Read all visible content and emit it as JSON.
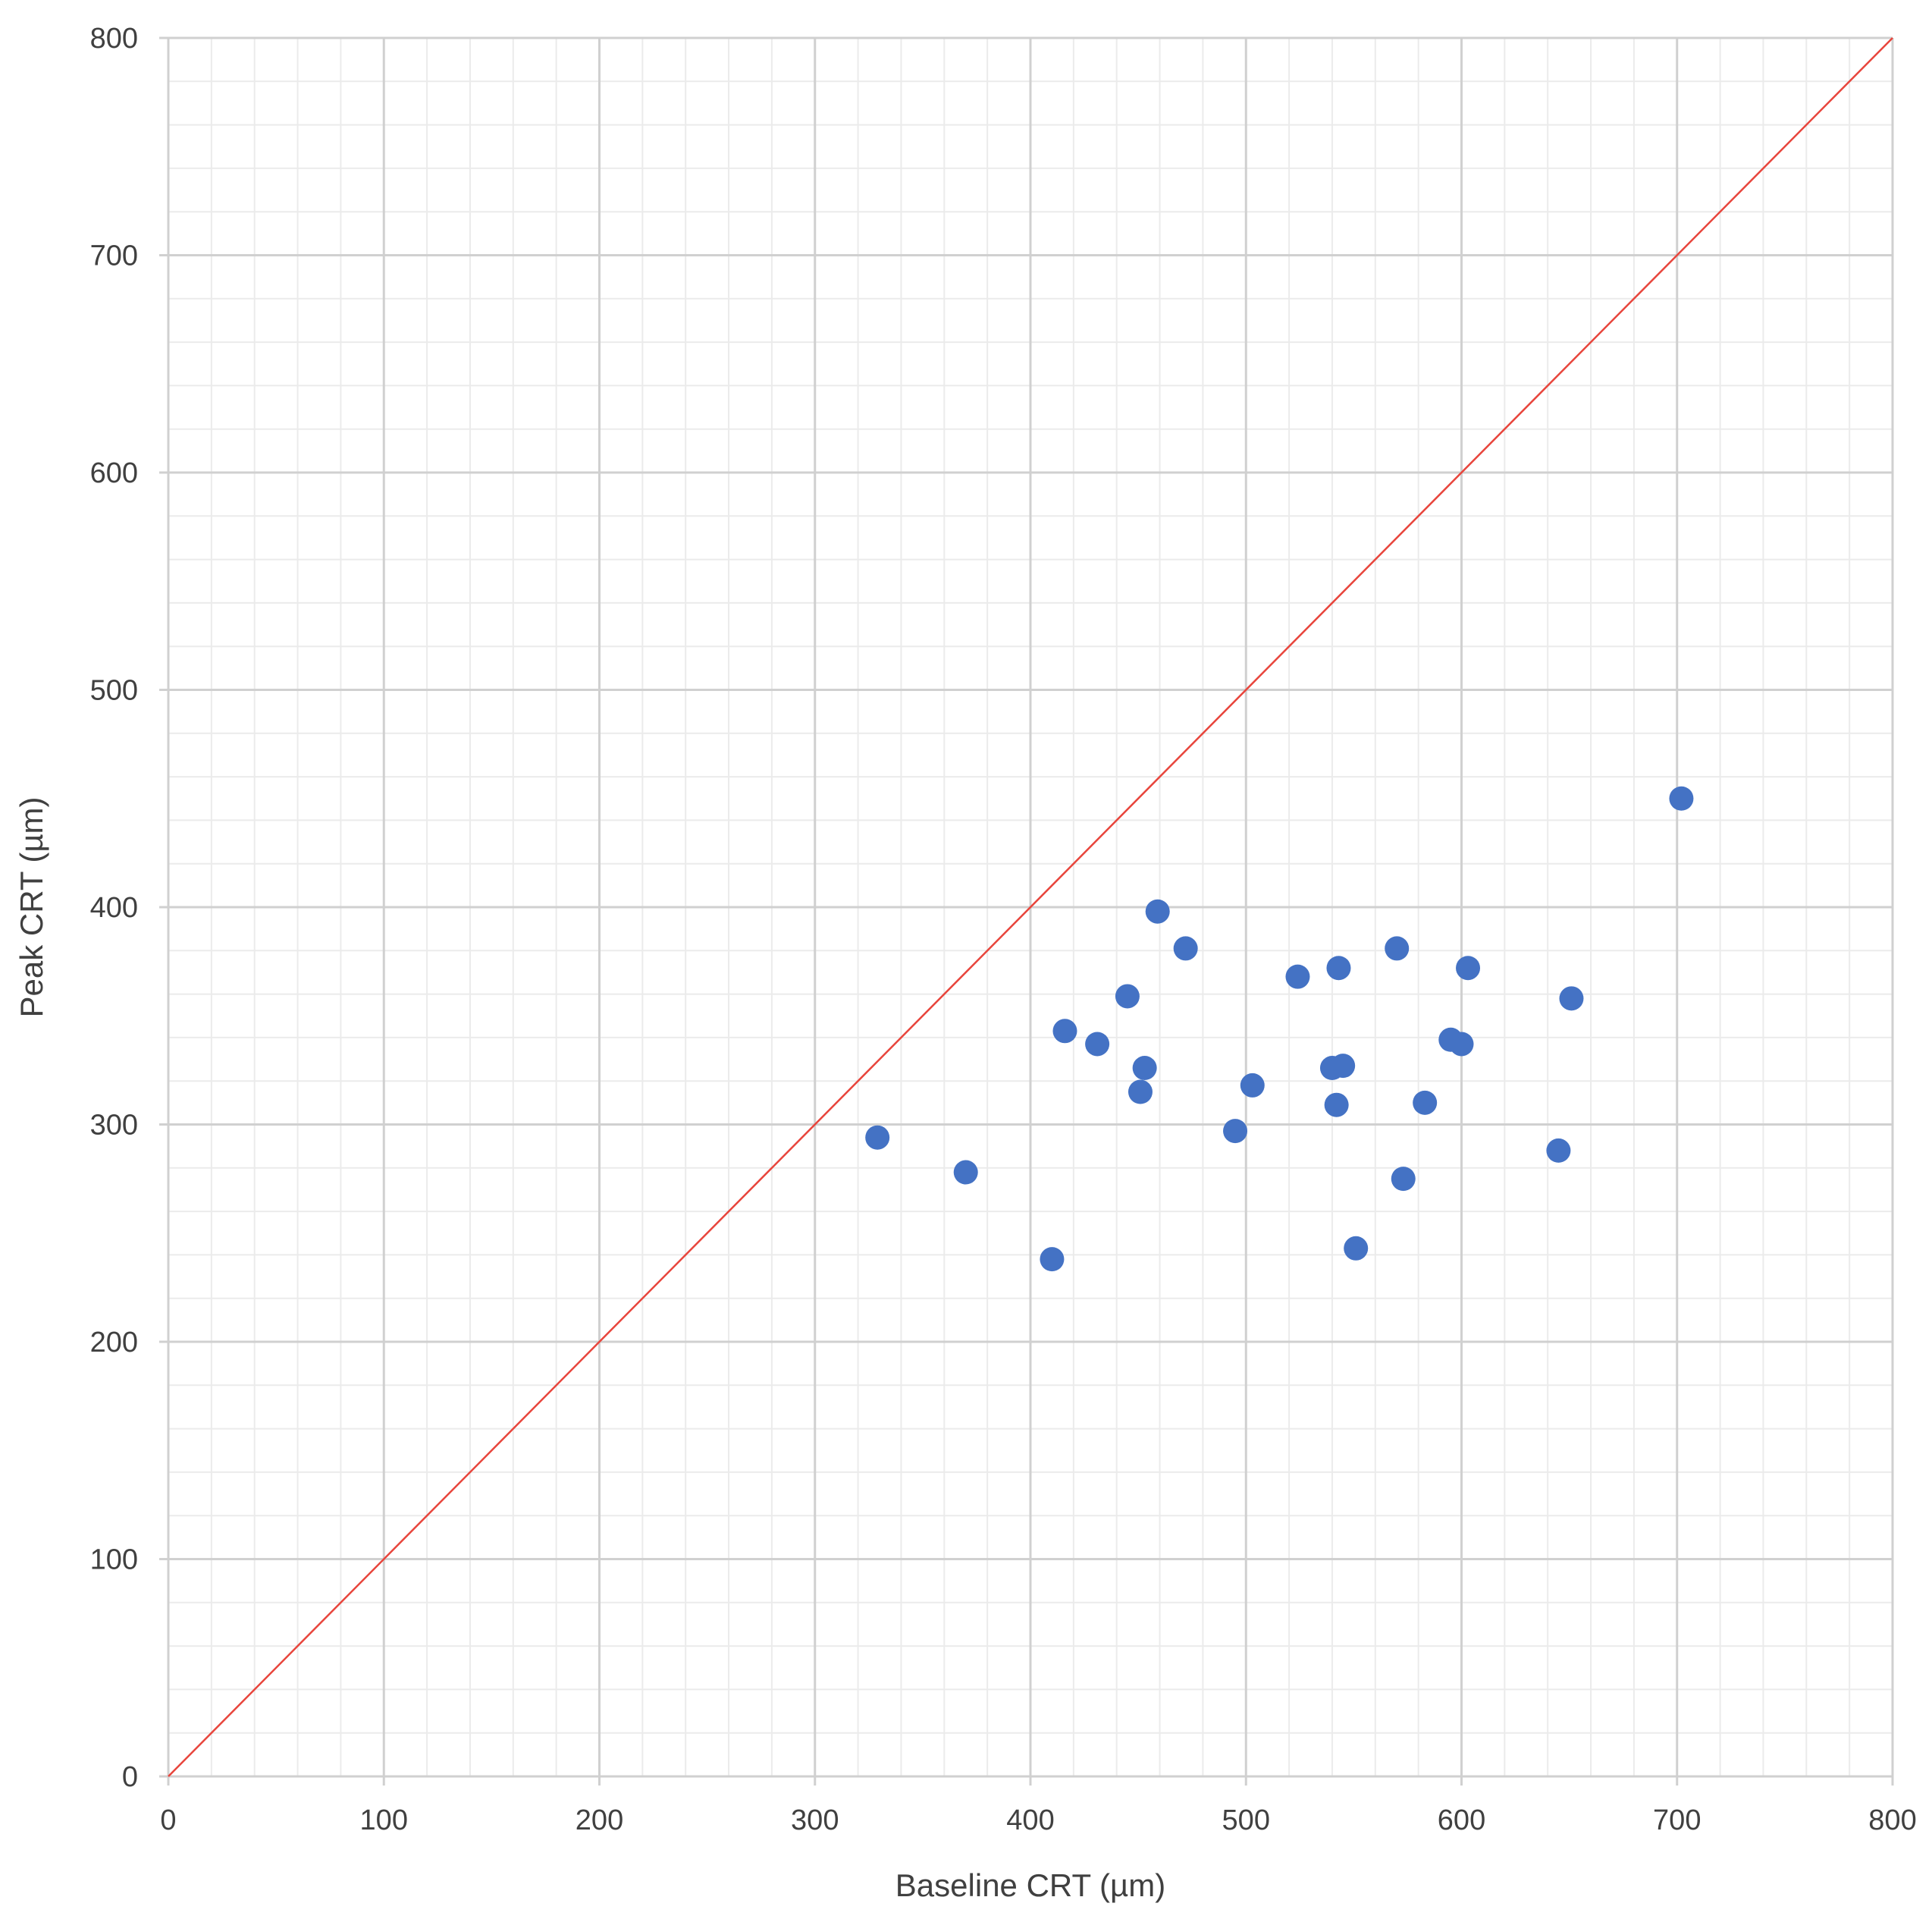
{
  "chart_data": {
    "type": "scatter",
    "title": "",
    "xlabel": "Baseline CRT (µm)",
    "ylabel": "Peak CRT (µm)",
    "xlim": [
      0,
      800
    ],
    "ylim": [
      0,
      800
    ],
    "x_ticks": [
      "0",
      "100",
      "200",
      "300",
      "400",
      "500",
      "600",
      "700",
      "800"
    ],
    "y_ticks": [
      "0",
      "100",
      "200",
      "300",
      "400",
      "500",
      "600",
      "700",
      "800"
    ],
    "major_step": 100,
    "minor_step": 20,
    "grid": true,
    "legend": "none",
    "colors": {
      "points": "#4472C4",
      "reference_line": "#E8453C",
      "major_grid": "#D0D0D0",
      "minor_grid": "#EBEBEB",
      "tick_text": "#404040"
    },
    "reference_line": {
      "x": [
        0,
        800
      ],
      "y": [
        0,
        800
      ]
    },
    "points": [
      {
        "x": 329,
        "y": 294
      },
      {
        "x": 370,
        "y": 278
      },
      {
        "x": 410,
        "y": 238
      },
      {
        "x": 416,
        "y": 343
      },
      {
        "x": 431,
        "y": 337
      },
      {
        "x": 445,
        "y": 359
      },
      {
        "x": 451,
        "y": 315
      },
      {
        "x": 453,
        "y": 326
      },
      {
        "x": 459,
        "y": 398
      },
      {
        "x": 472,
        "y": 381
      },
      {
        "x": 495,
        "y": 297
      },
      {
        "x": 503,
        "y": 318
      },
      {
        "x": 524,
        "y": 368
      },
      {
        "x": 540,
        "y": 326
      },
      {
        "x": 542,
        "y": 309
      },
      {
        "x": 543,
        "y": 372
      },
      {
        "x": 545,
        "y": 327
      },
      {
        "x": 551,
        "y": 243
      },
      {
        "x": 570,
        "y": 381
      },
      {
        "x": 573,
        "y": 275
      },
      {
        "x": 583,
        "y": 310
      },
      {
        "x": 595,
        "y": 339
      },
      {
        "x": 600,
        "y": 337
      },
      {
        "x": 603,
        "y": 372
      },
      {
        "x": 645,
        "y": 288
      },
      {
        "x": 651,
        "y": 358
      },
      {
        "x": 702,
        "y": 450
      }
    ]
  }
}
